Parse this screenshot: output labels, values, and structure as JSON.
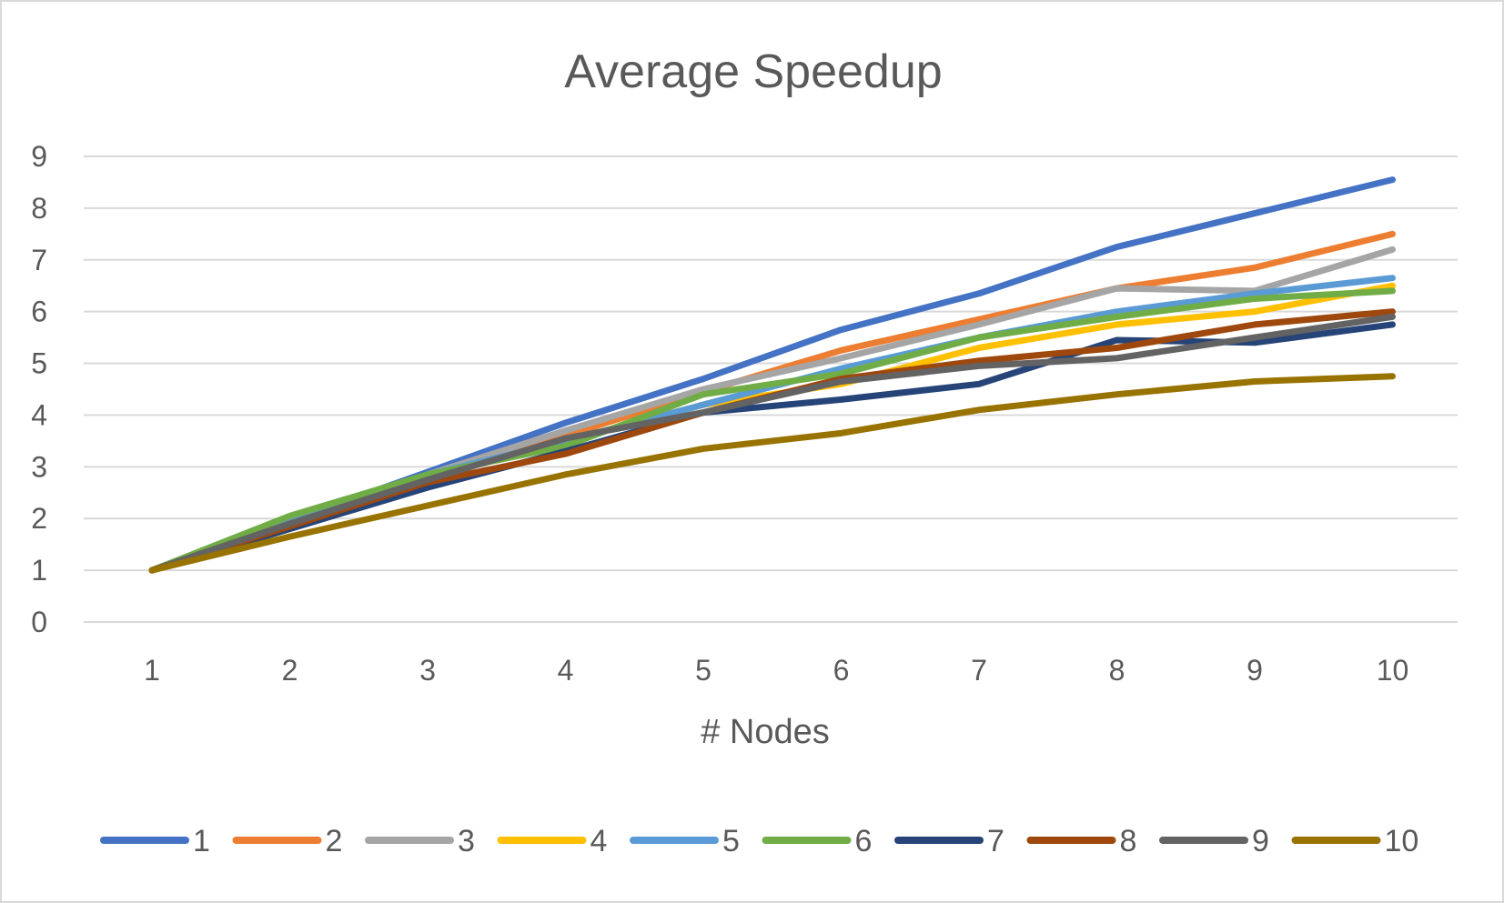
{
  "chart_data": {
    "type": "line",
    "title": "Average Speedup",
    "xlabel": "# Nodes",
    "ylabel": "",
    "categories": [
      "1",
      "2",
      "3",
      "4",
      "5",
      "6",
      "7",
      "8",
      "9",
      "10"
    ],
    "ylim": [
      0,
      9
    ],
    "yticks": [
      "0",
      "1",
      "2",
      "3",
      "4",
      "5",
      "6",
      "7",
      "8",
      "9"
    ],
    "grid": true,
    "legend": "bottom",
    "series": [
      {
        "name": "1",
        "color": "#4472C4",
        "values": [
          1,
          1.95,
          2.9,
          3.85,
          4.7,
          5.65,
          6.35,
          7.25,
          7.9,
          8.55
        ]
      },
      {
        "name": "2",
        "color": "#ED7D31",
        "values": [
          1,
          1.95,
          2.8,
          3.6,
          4.45,
          5.25,
          5.85,
          6.45,
          6.85,
          7.5
        ]
      },
      {
        "name": "3",
        "color": "#A5A5A5",
        "values": [
          1,
          1.95,
          2.85,
          3.7,
          4.5,
          5.1,
          5.75,
          6.45,
          6.4,
          7.2
        ]
      },
      {
        "name": "4",
        "color": "#FFC000",
        "values": [
          1,
          2.0,
          2.85,
          3.5,
          4.2,
          4.6,
          5.3,
          5.75,
          6.0,
          6.5
        ]
      },
      {
        "name": "5",
        "color": "#5B9BD5",
        "values": [
          1,
          2.0,
          2.85,
          3.5,
          4.2,
          4.9,
          5.5,
          6.0,
          6.35,
          6.65
        ]
      },
      {
        "name": "6",
        "color": "#70AD47",
        "values": [
          1,
          2.05,
          2.85,
          3.4,
          4.4,
          4.8,
          5.5,
          5.9,
          6.25,
          6.4
        ]
      },
      {
        "name": "7",
        "color": "#264478",
        "values": [
          1,
          1.8,
          2.6,
          3.3,
          4.05,
          4.3,
          4.6,
          5.45,
          5.4,
          5.75
        ]
      },
      {
        "name": "8",
        "color": "#9E480E",
        "values": [
          1,
          1.85,
          2.7,
          3.25,
          4.05,
          4.7,
          5.05,
          5.3,
          5.75,
          6.0
        ]
      },
      {
        "name": "9",
        "color": "#636363",
        "values": [
          1,
          1.9,
          2.75,
          3.55,
          4.05,
          4.65,
          4.95,
          5.1,
          5.5,
          5.9
        ]
      },
      {
        "name": "10",
        "color": "#997300",
        "values": [
          1,
          1.65,
          2.25,
          2.85,
          3.35,
          3.65,
          4.1,
          4.4,
          4.65,
          4.75
        ]
      }
    ]
  }
}
